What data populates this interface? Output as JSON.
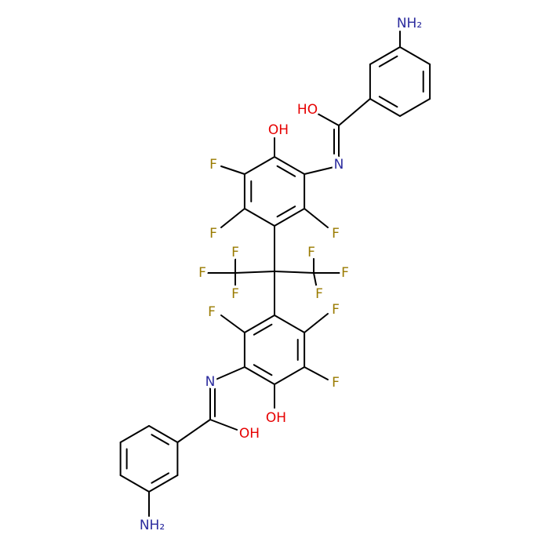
{
  "atoms": {
    "labels": [
      "NH₂",
      "HO",
      "N",
      "OH",
      "F",
      "F",
      "F",
      "F",
      "F",
      "F",
      "F",
      "F",
      "F",
      "F",
      "F",
      "F",
      "OH",
      "N",
      "OH",
      "NH₂"
    ]
  }
}
